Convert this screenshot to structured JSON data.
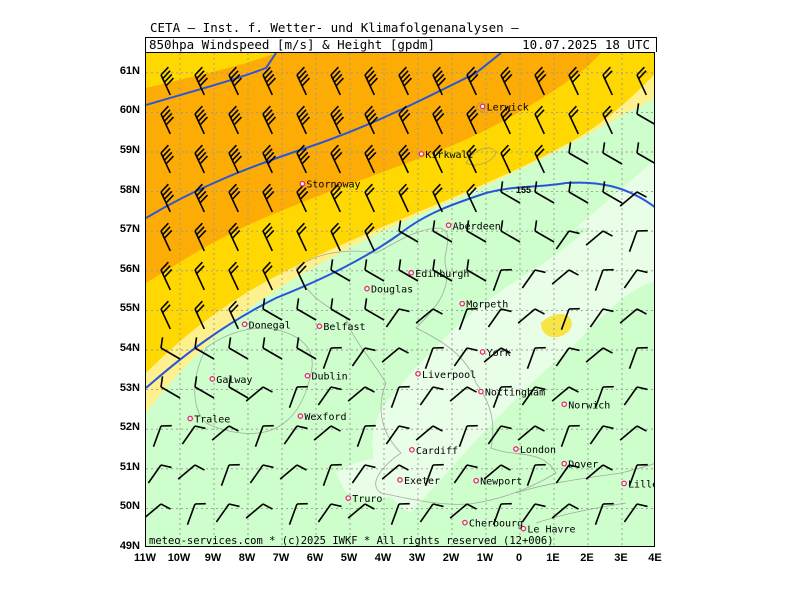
{
  "header": {
    "institute": "CETA — Inst. f. Wetter- und Klimafolgenanalysen —",
    "parameter": "850hpa Windspeed [m/s] & Height [gpdm]",
    "valid_time": "10.07.2025 18 UTC"
  },
  "footer": {
    "copyright": "meteo-services.com * (c)2025 IWKF * All rights reserved (12+006)"
  },
  "axes": {
    "lat_labels": [
      "61N",
      "60N",
      "59N",
      "58N",
      "57N",
      "56N",
      "55N",
      "54N",
      "53N",
      "52N",
      "51N",
      "50N",
      "49N"
    ],
    "lon_labels": [
      "11W",
      "10W",
      "9W",
      "8W",
      "7W",
      "6W",
      "5W",
      "4W",
      "3W",
      "2W",
      "1W",
      "0",
      "1E",
      "2E",
      "3E",
      "4E"
    ],
    "lat_range": [
      49,
      61.5
    ],
    "lon_range": [
      -11,
      4
    ]
  },
  "colors": {
    "light_green": "#cdfecb",
    "pale_green": "#e8fee6",
    "yellow_light": "#fef08c",
    "yellow": "#fed800",
    "orange": "#fdab05",
    "contour": "#2b55d8",
    "city_marker": "#e0306e"
  },
  "contour_label": "155",
  "cities": [
    {
      "name": "Lerwick",
      "lon": -1.1,
      "lat": 60.15
    },
    {
      "name": "Kirkwall",
      "lon": -2.9,
      "lat": 58.95
    },
    {
      "name": "Stornoway",
      "lon": -6.4,
      "lat": 58.2
    },
    {
      "name": "Aberdeen",
      "lon": -2.1,
      "lat": 57.15
    },
    {
      "name": "Edinburgh",
      "lon": -3.2,
      "lat": 55.95
    },
    {
      "name": "Douglas",
      "lon": -4.5,
      "lat": 55.55
    },
    {
      "name": "Morpeth",
      "lon": -1.7,
      "lat": 55.17
    },
    {
      "name": "Donegal",
      "lon": -8.1,
      "lat": 54.65
    },
    {
      "name": "Belfast",
      "lon": -5.9,
      "lat": 54.6
    },
    {
      "name": "York",
      "lon": -1.1,
      "lat": 53.95
    },
    {
      "name": "Liverpool",
      "lon": -3.0,
      "lat": 53.4
    },
    {
      "name": "Galway",
      "lon": -9.05,
      "lat": 53.27
    },
    {
      "name": "Dublin",
      "lon": -6.25,
      "lat": 53.35
    },
    {
      "name": "Nottingham",
      "lon": -1.15,
      "lat": 52.95
    },
    {
      "name": "Norwich",
      "lon": 1.3,
      "lat": 52.63
    },
    {
      "name": "Tralee",
      "lon": -9.7,
      "lat": 52.27
    },
    {
      "name": "Wexford",
      "lon": -6.46,
      "lat": 52.33
    },
    {
      "name": "Cardiff",
      "lon": -3.18,
      "lat": 51.48
    },
    {
      "name": "London",
      "lon": -0.12,
      "lat": 51.5
    },
    {
      "name": "Dover",
      "lon": 1.3,
      "lat": 51.13
    },
    {
      "name": "Exeter",
      "lon": -3.53,
      "lat": 50.72
    },
    {
      "name": "Newport",
      "lon": -1.29,
      "lat": 50.7
    },
    {
      "name": "Lille",
      "lon": 3.06,
      "lat": 50.63
    },
    {
      "name": "Truro",
      "lon": -5.05,
      "lat": 50.26
    },
    {
      "name": "Le Havre",
      "lon": 0.1,
      "lat": 49.49
    },
    {
      "name": "Cherbourg",
      "lon": -1.62,
      "lat": 49.64
    }
  ]
}
